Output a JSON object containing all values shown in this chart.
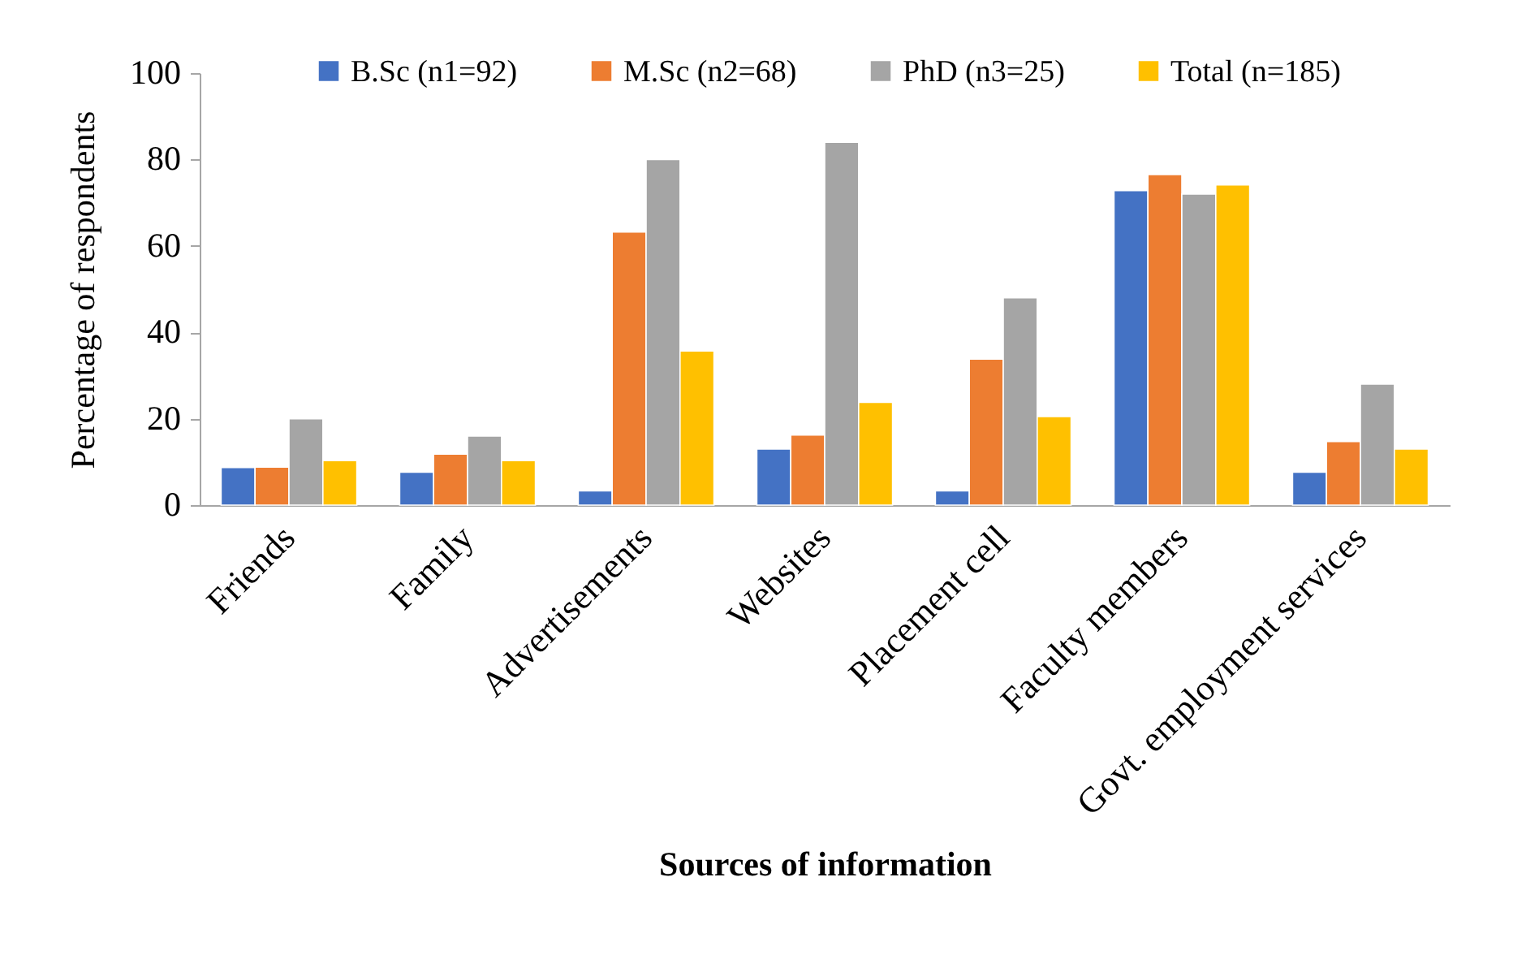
{
  "chart_data": {
    "type": "bar",
    "xlabel": "Sources of information",
    "ylabel": "Percentage of respondents",
    "categories": [
      "Friends",
      "Family",
      "Advertisements",
      "Websites",
      "Placement cell",
      "Faculty members",
      "Govt. employment services"
    ],
    "series": [
      {
        "name": "B.Sc (n1=92)",
        "color": "#4472c4",
        "values": [
          8.7,
          7.6,
          3.3,
          13.0,
          3.3,
          72.8,
          7.6
        ]
      },
      {
        "name": "M.Sc (n2=68)",
        "color": "#ed7d31",
        "values": [
          8.8,
          11.8,
          63.2,
          16.2,
          33.8,
          76.5,
          14.7
        ]
      },
      {
        "name": "PhD (n3=25)",
        "color": "#a5a5a5",
        "values": [
          20.0,
          16.0,
          80.0,
          84.0,
          48.0,
          72.0,
          28.0
        ]
      },
      {
        "name": "Total (n=185)",
        "color": "#ffc000",
        "values": [
          10.3,
          10.3,
          35.7,
          23.8,
          20.5,
          74.1,
          13.0
        ]
      }
    ],
    "ylim": [
      0,
      100
    ],
    "yticks": [
      0,
      20,
      40,
      60,
      80,
      100
    ],
    "legend": "top"
  }
}
